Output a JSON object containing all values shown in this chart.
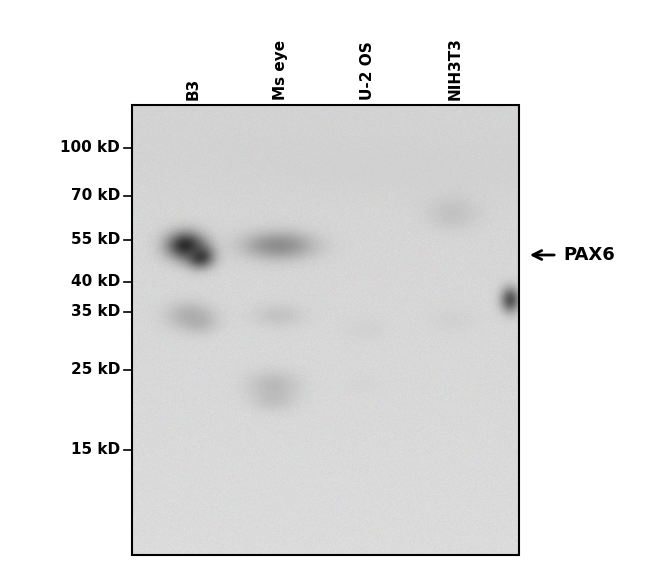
{
  "background_color": "#ffffff",
  "gel_bg_color": "#c8c0bc",
  "lane_labels": [
    "B3",
    "Ms eye",
    "U-2 OS",
    "NIH3T3"
  ],
  "mw_labels": [
    "100 kD",
    "70 kD",
    "55 kD",
    "40 kD",
    "35 kD",
    "25 kD",
    "15 kD"
  ],
  "arrow_label": "PAX6",
  "label_fontsize": 11,
  "mw_fontsize": 11
}
